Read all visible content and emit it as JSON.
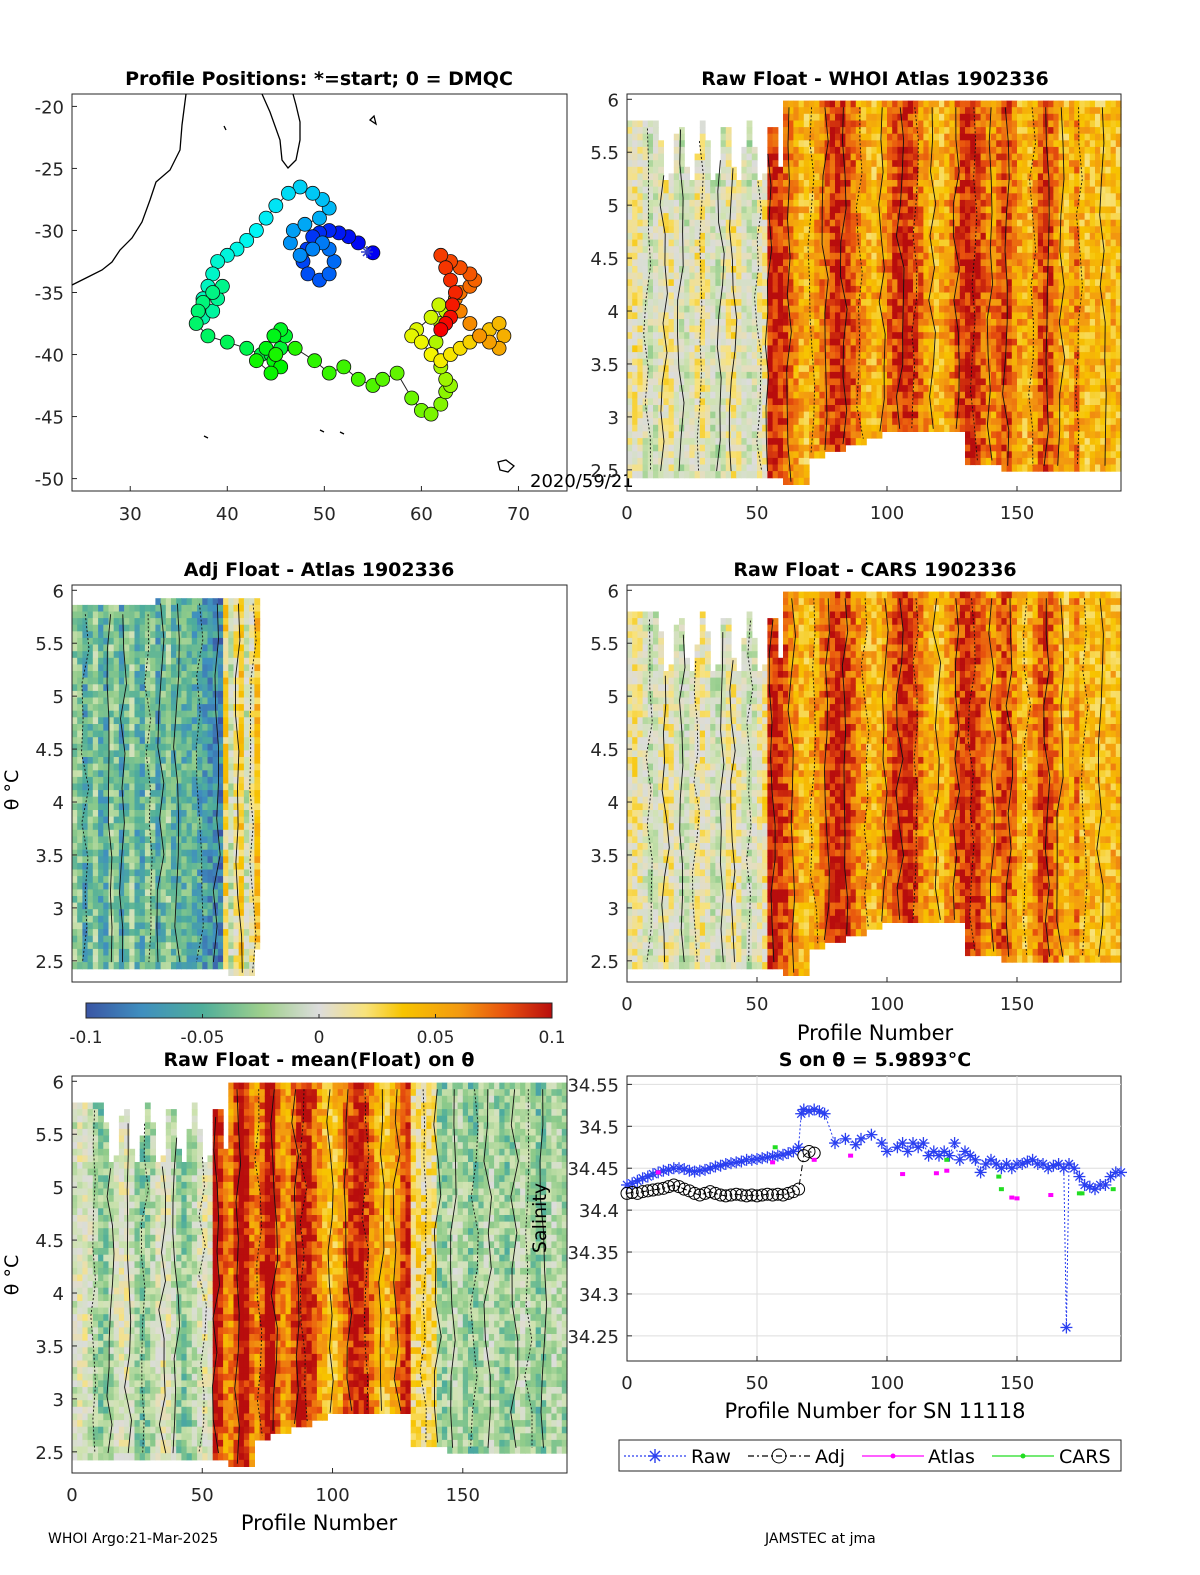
{
  "figure": {
    "footer_left": "WHOI Argo:21-Mar-2025",
    "footer_right": "JAMSTEC at jma",
    "date_label": "2020/59/21",
    "colormap": [
      "#3a55a4",
      "#3f8fbf",
      "#4fae9a",
      "#8fcb8a",
      "#cfe3b0",
      "#dcdcdc",
      "#f8e27a",
      "#f7c400",
      "#f39a10",
      "#e8520e",
      "#b80d0d"
    ]
  },
  "panels": {
    "map": {
      "title": "Profile Positions: *=start; 0 = DMQC",
      "xticks": [
        "30",
        "40",
        "50",
        "60",
        "70"
      ],
      "yticks": [
        "-20",
        "-25",
        "-30",
        "-35",
        "-40",
        "-45",
        "-50"
      ]
    },
    "raw_whoi": {
      "title": "Raw Float - WHOI Atlas  1902336",
      "xticks": [
        "0",
        "50",
        "100",
        "150"
      ],
      "yticks": [
        "6",
        "5.5",
        "5",
        "4.5",
        "4",
        "3.5",
        "3",
        "2.5"
      ]
    },
    "adj_atlas": {
      "title": "Adj Float - Atlas  1902336",
      "ylabel": "θ °C",
      "xticks": [],
      "yticks": [
        "6",
        "5.5",
        "5",
        "4.5",
        "4",
        "3.5",
        "3",
        "2.5"
      ]
    },
    "raw_cars": {
      "title": "Raw Float - CARS  1902336",
      "xlabel": "Profile Number",
      "xticks": [
        "0",
        "50",
        "100",
        "150"
      ],
      "yticks": [
        "6",
        "5.5",
        "5",
        "4.5",
        "4",
        "3.5",
        "3",
        "2.5"
      ]
    },
    "colorbar": {
      "ticks": [
        "-0.1",
        "-0.05",
        "0",
        "0.05",
        "0.1"
      ]
    },
    "raw_mean": {
      "title": "Raw Float - mean(Float) on θ",
      "xlabel": "Profile Number",
      "ylabel": "θ °C",
      "xticks": [
        "0",
        "50",
        "100",
        "150"
      ],
      "yticks": [
        "6",
        "5.5",
        "5",
        "4.5",
        "4",
        "3.5",
        "3",
        "2.5"
      ]
    },
    "salinity": {
      "title": "S on θ = 5.9893°C",
      "xlabel": "Profile Number for SN 11118",
      "ylabel": "Salinity",
      "xticks": [
        "0",
        "50",
        "100",
        "150"
      ],
      "yticks": [
        "34.55",
        "34.5",
        "34.45",
        "34.4",
        "34.35",
        "34.3",
        "34.25"
      ]
    }
  },
  "legend": {
    "raw": "Raw",
    "adj": "Adj",
    "atlas": "Atlas",
    "cars": "CARS",
    "colors": {
      "raw": "#2a3ff0",
      "adj": "#000000",
      "atlas": "#ff00ff",
      "cars": "#22dd22"
    }
  },
  "chart_data": [
    {
      "type": "scatter",
      "title": "Profile Positions: *=start; 0 = DMQC",
      "xlim": [
        24,
        75
      ],
      "ylim": [
        -51,
        -19
      ],
      "track_lon": [
        55.0,
        53.5,
        52.5,
        51.5,
        50.5,
        49.5,
        48.8,
        48.2,
        47.8,
        48.3,
        49.5,
        50.5,
        51.0,
        50.5,
        49.8,
        48.8,
        47.5,
        46.5,
        46.8,
        48.0,
        49.5,
        50.5,
        49.8,
        48.8,
        47.5,
        46.3,
        45.0,
        44.0,
        43.0,
        42.0,
        41.0,
        40.0,
        39.0,
        38.5,
        38.0,
        37.5,
        37.0,
        37.5,
        38.5,
        39.0,
        39.5,
        38.5,
        37.5,
        37.0,
        36.8,
        38.0,
        40.0,
        42.0,
        43.5,
        44.5,
        45.5,
        46.0,
        45.5,
        44.8,
        44.0,
        44.8,
        45.5,
        44.5,
        43.0,
        45.0,
        47.0,
        49.0,
        50.5,
        52.0,
        53.5,
        55.0,
        56.0,
        57.5,
        59.0,
        60.0,
        61.0,
        62.0,
        62.5,
        63.0,
        62.5,
        62.0,
        61.5,
        62.0,
        62.5,
        61.8,
        61.0,
        59.5,
        59.0,
        60.0,
        61.0,
        62.0,
        63.0,
        64.0,
        65.0,
        66.0,
        67.0,
        68.0,
        68.5,
        68.0,
        67.0,
        66.0,
        65.0,
        64.0,
        63.5,
        64.0,
        65.0,
        65.5,
        65.0,
        64.0,
        63.0,
        62.0,
        62.5,
        63.0,
        63.5,
        63.2,
        63.0,
        62.5,
        62.0
      ],
      "track_lat": [
        -31.8,
        -31.0,
        -30.5,
        -30.2,
        -30.0,
        -30.2,
        -30.5,
        -31.5,
        -32.5,
        -33.5,
        -34.0,
        -33.5,
        -32.5,
        -31.5,
        -31.0,
        -31.5,
        -32.0,
        -31.0,
        -30.0,
        -29.5,
        -29.0,
        -28.2,
        -27.5,
        -27.0,
        -26.5,
        -27.0,
        -28.0,
        -29.0,
        -30.0,
        -30.8,
        -31.5,
        -32.0,
        -32.5,
        -33.5,
        -34.5,
        -35.5,
        -36.5,
        -37.0,
        -36.5,
        -35.5,
        -34.5,
        -35.0,
        -35.8,
        -36.5,
        -37.5,
        -38.5,
        -39.0,
        -39.5,
        -40.0,
        -40.0,
        -39.5,
        -38.5,
        -38.0,
        -38.5,
        -39.5,
        -40.5,
        -41.0,
        -41.5,
        -40.5,
        -40.0,
        -39.5,
        -40.5,
        -41.5,
        -41.0,
        -42.0,
        -42.5,
        -42.0,
        -41.5,
        -43.5,
        -44.5,
        -44.8,
        -44.0,
        -43.0,
        -42.5,
        -42.0,
        -41.0,
        -39.0,
        -37.5,
        -36.5,
        -36.0,
        -37.0,
        -38.0,
        -38.5,
        -39.0,
        -40.0,
        -40.5,
        -40.0,
        -39.5,
        -39.0,
        -38.5,
        -38.0,
        -37.5,
        -38.5,
        -39.5,
        -39.0,
        -38.5,
        -37.5,
        -36.5,
        -35.5,
        -35.0,
        -34.5,
        -34.0,
        -33.5,
        -33.0,
        -32.5,
        -32.0,
        -33.0,
        -34.0,
        -35.0,
        -36.0,
        -37.0,
        -37.5,
        -38.0
      ]
    },
    {
      "type": "heatmap",
      "title": "Raw Float - WHOI Atlas  1902336",
      "xlim": [
        0,
        190
      ],
      "ylim": [
        2.3,
        6.05
      ]
    },
    {
      "type": "heatmap",
      "title": "Adj Float - Atlas  1902336",
      "xlim": [
        0,
        190
      ],
      "ylim": [
        2.3,
        6.05
      ]
    },
    {
      "type": "heatmap",
      "title": "Raw Float - CARS  1902336",
      "xlim": [
        0,
        190
      ],
      "ylim": [
        2.3,
        6.05
      ]
    },
    {
      "type": "heatmap",
      "title": "Raw Float - mean(Float) on θ",
      "xlim": [
        0,
        190
      ],
      "ylim": [
        2.3,
        6.05
      ]
    },
    {
      "type": "line",
      "title": "S on θ = 5.9893°C",
      "xlabel": "Profile Number for SN 11118",
      "ylabel": "Salinity",
      "xlim": [
        0,
        190
      ],
      "ylim": [
        34.22,
        34.56
      ],
      "series": [
        {
          "name": "Raw",
          "x": [
            0,
            2,
            4,
            6,
            8,
            10,
            12,
            14,
            16,
            18,
            20,
            22,
            24,
            26,
            28,
            30,
            32,
            34,
            36,
            38,
            40,
            42,
            44,
            46,
            48,
            50,
            52,
            54,
            56,
            58,
            60,
            62,
            64,
            66,
            67,
            68,
            70,
            72,
            74,
            76,
            80,
            84,
            88,
            90,
            94,
            98,
            100,
            104,
            106,
            108,
            110,
            112,
            114,
            116,
            118,
            120,
            122,
            124,
            126,
            128,
            130,
            132,
            134,
            136,
            138,
            140,
            142,
            144,
            146,
            148,
            150,
            152,
            154,
            156,
            158,
            160,
            162,
            164,
            166,
            168,
            169,
            170,
            172,
            174,
            176,
            178,
            180,
            182,
            184,
            186,
            188,
            190
          ],
          "y": [
            34.43,
            34.432,
            34.435,
            34.438,
            34.44,
            34.443,
            34.445,
            34.447,
            34.448,
            34.45,
            34.45,
            34.449,
            34.447,
            34.446,
            34.447,
            34.448,
            34.45,
            34.452,
            34.453,
            34.455,
            34.456,
            34.457,
            34.458,
            34.46,
            34.46,
            34.461,
            34.462,
            34.463,
            34.464,
            34.465,
            34.466,
            34.468,
            34.47,
            34.475,
            34.515,
            34.52,
            34.518,
            34.52,
            34.518,
            34.515,
            34.48,
            34.485,
            34.478,
            34.485,
            34.49,
            34.48,
            34.47,
            34.475,
            34.48,
            34.47,
            34.48,
            34.475,
            34.48,
            34.465,
            34.47,
            34.465,
            34.47,
            34.465,
            34.48,
            34.46,
            34.47,
            34.465,
            34.46,
            34.445,
            34.455,
            34.46,
            34.455,
            34.45,
            34.455,
            34.45,
            34.455,
            34.455,
            34.458,
            34.46,
            34.455,
            34.455,
            34.45,
            34.453,
            34.455,
            34.45,
            34.26,
            34.455,
            34.45,
            34.44,
            34.43,
            34.428,
            34.425,
            34.43,
            34.43,
            34.44,
            34.445,
            34.445
          ]
        },
        {
          "name": "Adj",
          "x": [
            0,
            2,
            4,
            6,
            8,
            10,
            12,
            14,
            16,
            18,
            20,
            22,
            24,
            26,
            28,
            30,
            32,
            34,
            36,
            38,
            40,
            42,
            44,
            46,
            48,
            50,
            52,
            54,
            56,
            58,
            60,
            62,
            64,
            66,
            68,
            70,
            72
          ],
          "y": [
            34.42,
            34.421,
            34.42,
            34.422,
            34.423,
            34.424,
            34.425,
            34.426,
            34.428,
            34.43,
            34.428,
            34.425,
            34.423,
            34.42,
            34.418,
            34.42,
            34.422,
            34.42,
            34.418,
            34.417,
            34.418,
            34.419,
            34.418,
            34.417,
            34.418,
            34.417,
            34.418,
            34.419,
            34.418,
            34.419,
            34.418,
            34.42,
            34.422,
            34.425,
            34.465,
            34.47,
            34.468
          ]
        },
        {
          "name": "Atlas",
          "x": [
            12,
            56,
            72,
            86,
            106,
            119,
            123,
            148,
            150,
            163
          ],
          "y": [
            34.445,
            34.457,
            34.46,
            34.465,
            34.443,
            34.444,
            34.447,
            34.415,
            34.414,
            34.418
          ]
        },
        {
          "name": "CARS",
          "x": [
            57,
            123,
            143,
            144,
            174,
            175,
            187
          ],
          "y": [
            34.475,
            34.46,
            34.44,
            34.425,
            34.42,
            34.42,
            34.425
          ]
        }
      ]
    }
  ]
}
